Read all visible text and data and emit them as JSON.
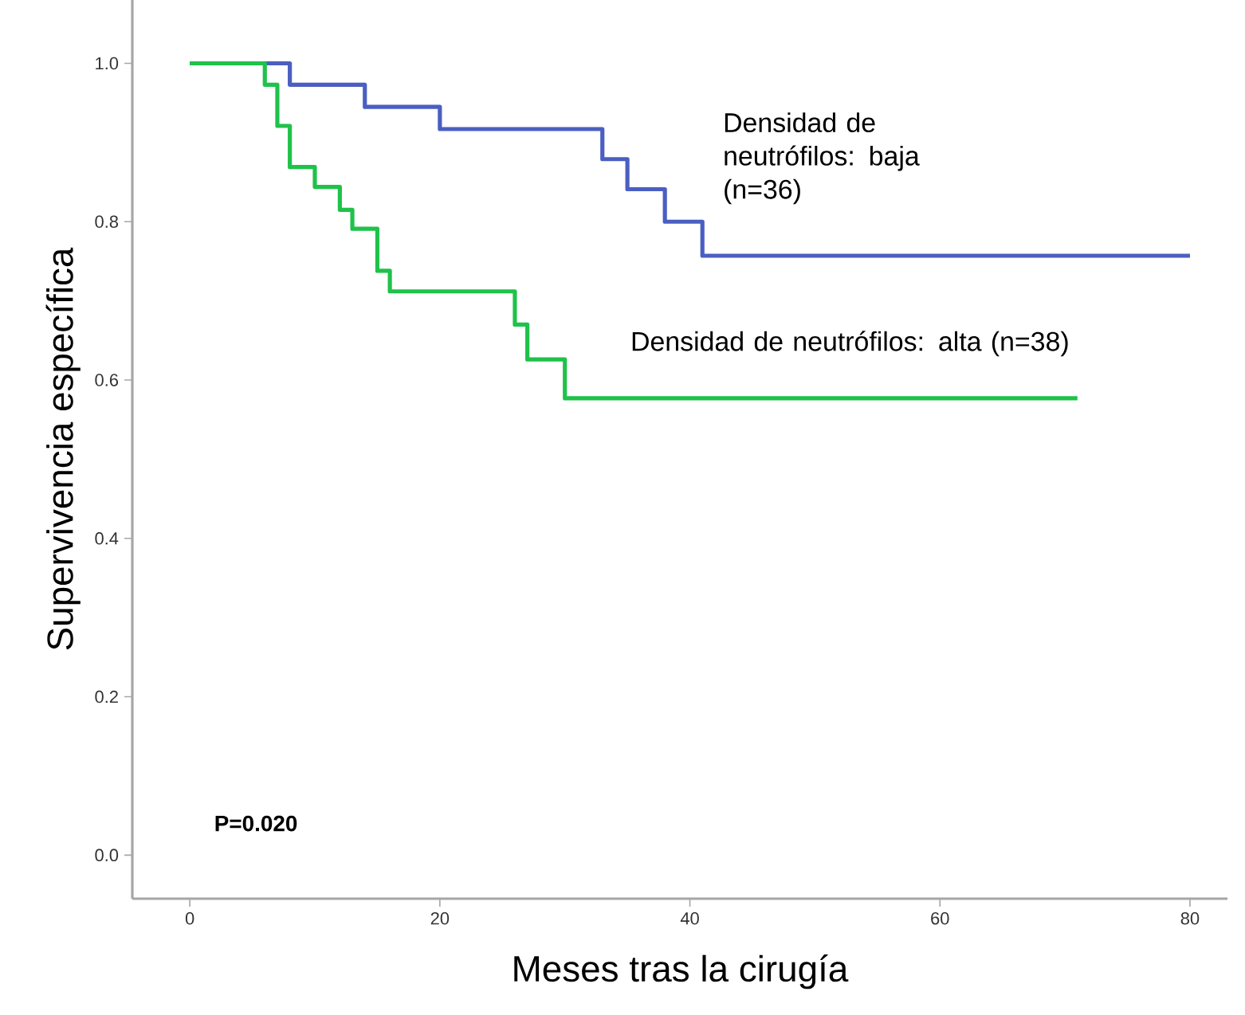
{
  "chart_data": {
    "type": "step",
    "xlabel": "Meses tras la cirugía",
    "ylabel": "Supervivencia específica",
    "xlim": [
      -4.6,
      83
    ],
    "ylim": [
      -0.055,
      1.08
    ],
    "xticks": [
      0,
      20,
      40,
      60,
      80
    ],
    "yticks": [
      {
        "value": 0,
        "label": "0.0"
      },
      {
        "value": 0.2,
        "label": "0.2"
      },
      {
        "value": 0.4,
        "label": "0.4"
      },
      {
        "value": 0.6,
        "label": "0.6"
      },
      {
        "value": 0.8,
        "label": "0.8"
      },
      {
        "value": 1,
        "label": "1.0"
      }
    ],
    "grid": false,
    "legend": false,
    "annotations": [
      "P=0.020"
    ],
    "series": [
      {
        "name": "Densidad de neutrófilos: baja (n=36)",
        "color": "#4a5fc1",
        "x": [
          0,
          8,
          14,
          20,
          33,
          35,
          38,
          41,
          80
        ],
        "values": [
          1.0,
          0.973,
          0.945,
          0.917,
          0.879,
          0.841,
          0.8,
          0.757,
          0.757
        ]
      },
      {
        "name": "Densidad de neutrófilos: alta (n=38)",
        "color": "#1fc24a",
        "x": [
          0,
          6,
          7,
          8,
          10,
          12,
          13,
          15,
          16,
          26,
          27,
          30,
          71
        ],
        "values": [
          1.0,
          0.973,
          0.921,
          0.869,
          0.844,
          0.815,
          0.791,
          0.738,
          0.712,
          0.67,
          0.626,
          0.577,
          0.577
        ]
      }
    ]
  }
}
